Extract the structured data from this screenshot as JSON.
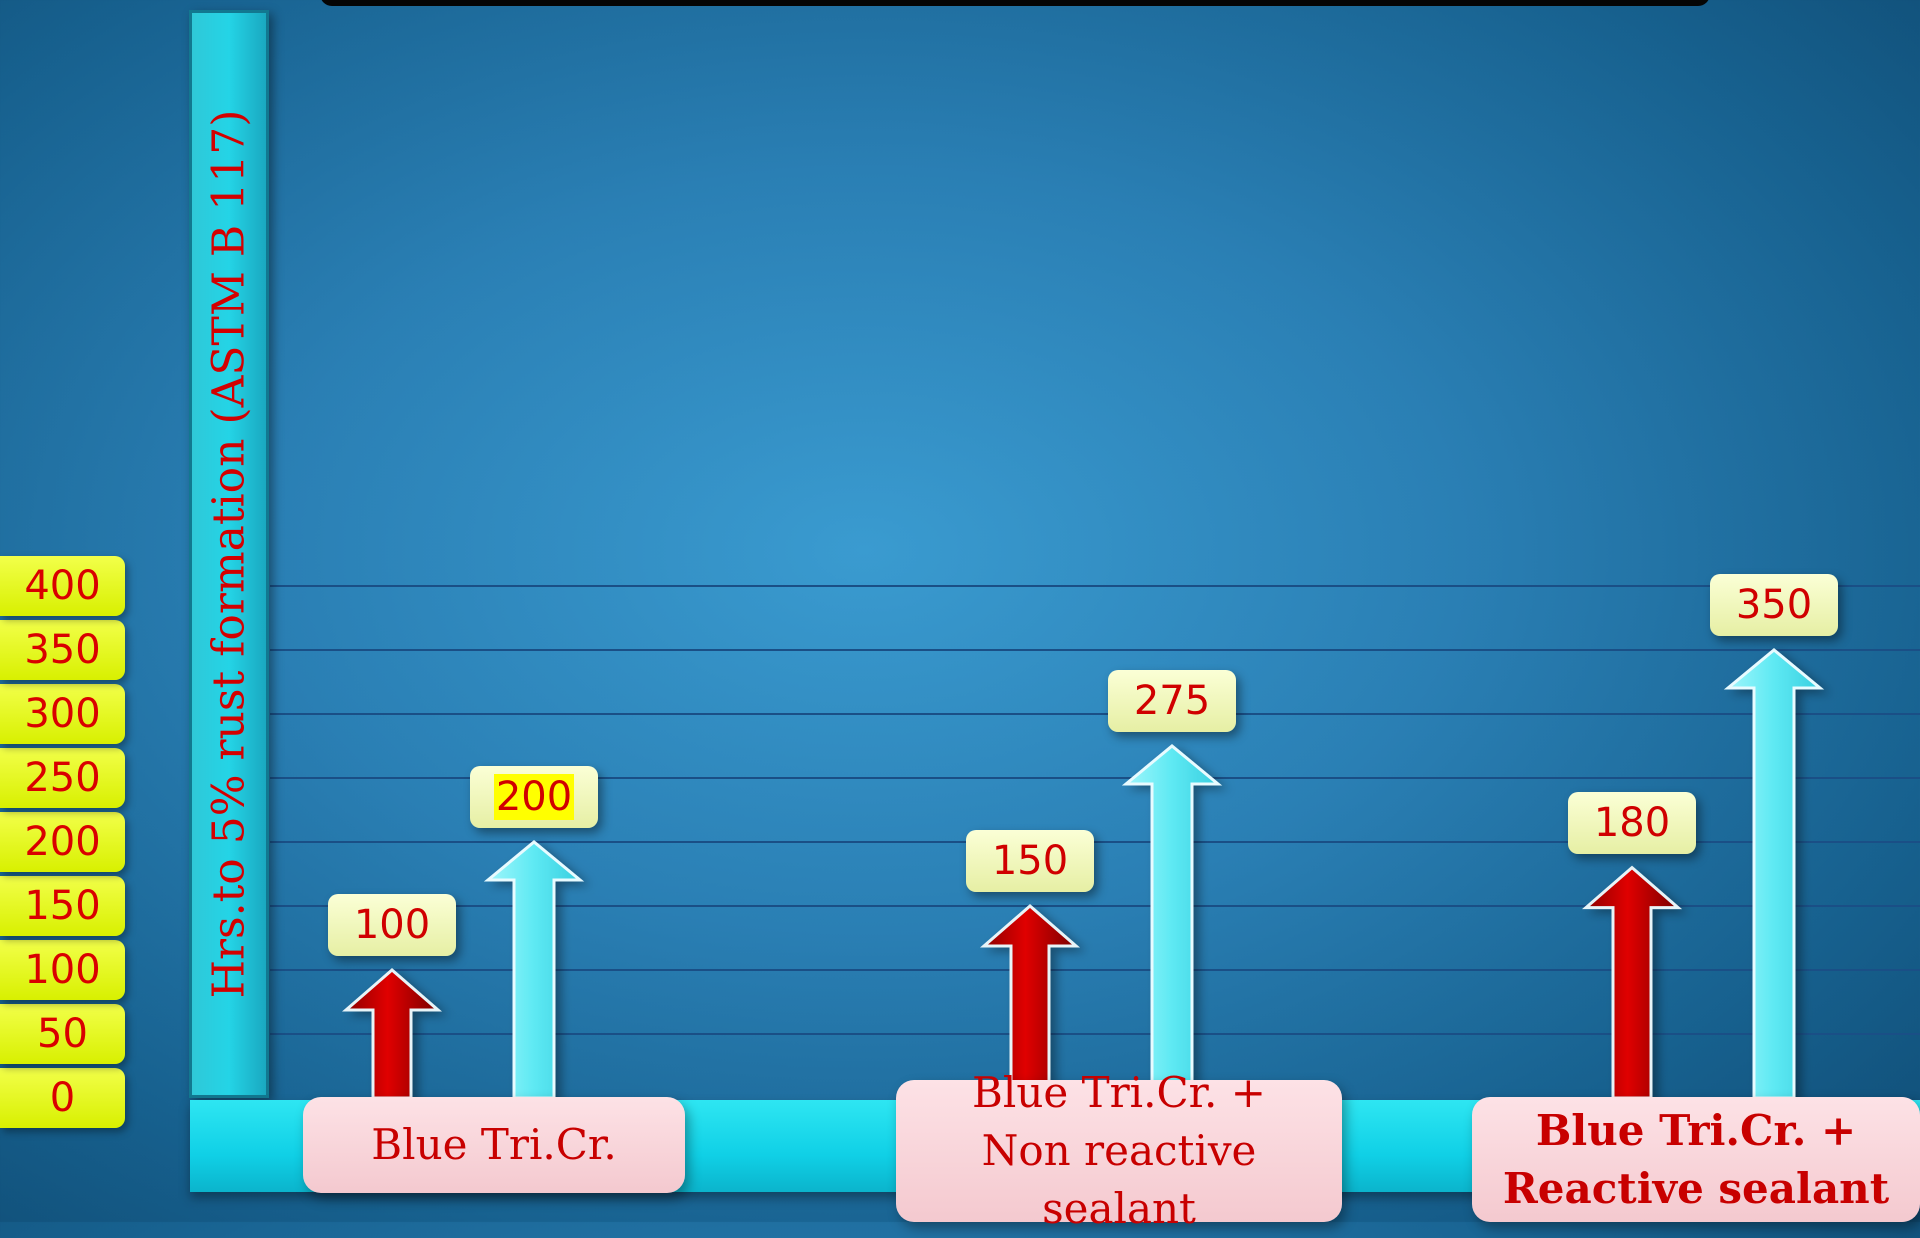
{
  "chart_data": {
    "type": "bar",
    "title": "",
    "ylabel": "Hrs.to 5% rust formation (ASTM B 117)",
    "xlabel": "",
    "ylim": [
      0,
      400
    ],
    "yticks": [
      "0",
      "50",
      "100",
      "150",
      "200",
      "250",
      "300",
      "350",
      "400"
    ],
    "categories": [
      "Blue Tri.Cr.",
      "Blue Tri.Cr. + Non reactive sealant",
      "Blue Tri.Cr. + Reactive sealant"
    ],
    "series": [
      {
        "color": "#d10000",
        "values": [
          100,
          150,
          180
        ]
      },
      {
        "color": "#55e8f2",
        "values": [
          200,
          275,
          350
        ]
      }
    ],
    "value_labels": [
      [
        "100",
        "150",
        "180"
      ],
      [
        "200",
        "275",
        "350"
      ]
    ],
    "highlighted_label": "200",
    "bold_category": "Blue Tri.Cr. + Reactive sealant"
  },
  "colors": {
    "label_text": "#d00000",
    "tick_box": "#e6f700",
    "baseline": "#16d8ea"
  }
}
